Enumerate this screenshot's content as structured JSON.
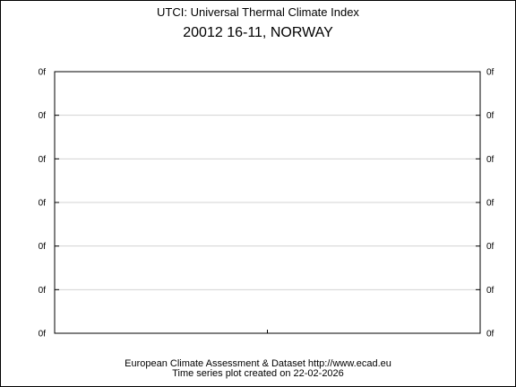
{
  "title": "UTCI: Universal Thermal Climate Index",
  "subtitle": "20012 16-11, NORWAY",
  "footer": {
    "line1": "European Climate Assessment & Dataset  http://www.ecad.eu",
    "line2": "Time series plot created on 22-02-2026"
  },
  "colors": {
    "axis": "#000000",
    "grid": "#d3d3d3",
    "background": "#ffffff"
  },
  "chart_data": {
    "type": "line",
    "title": "UTCI: Universal Thermal Climate Index",
    "subtitle": "20012 16-11, NORWAY",
    "series": [],
    "y_tick_labels": [
      "0f",
      "0f",
      "0f",
      "0f",
      "0f",
      "0f",
      "0f"
    ],
    "y_tick_labels_right": [
      "0f",
      "0f",
      "0f",
      "0f",
      "0f",
      "0f",
      "0f"
    ],
    "grid": true,
    "legend": "none"
  }
}
